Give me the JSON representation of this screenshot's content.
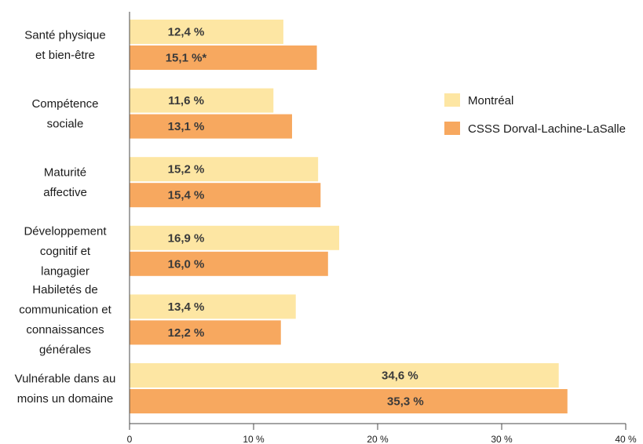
{
  "chart_data": {
    "type": "bar",
    "orientation": "horizontal",
    "categories": [
      [
        "Santé physique",
        "et bien-être"
      ],
      [
        "Compétence",
        "sociale"
      ],
      [
        "Maturité",
        "affective"
      ],
      [
        "Développement",
        "cognitif et",
        "langagier"
      ],
      [
        "Habiletés de",
        "communication et",
        "connaissances",
        "générales"
      ],
      [
        "Vulnérable dans au",
        "moins un domaine"
      ]
    ],
    "series": [
      {
        "name": "Montréal",
        "color": "#fde6a3",
        "values": [
          12.4,
          11.6,
          15.2,
          16.9,
          13.4,
          34.6
        ],
        "labels": [
          "12,4 %",
          "11,6 %",
          "15,2 %",
          "16,9 %",
          "13,4 %",
          "34,6 %"
        ]
      },
      {
        "name": "CSSS Dorval-Lachine-LaSalle",
        "color": "#f7a85f",
        "values": [
          15.1,
          13.1,
          15.4,
          16.0,
          12.2,
          35.3
        ],
        "labels": [
          "15,1 %*",
          "13,1 %",
          "15,4 %",
          "16,0 %",
          "12,2 %",
          "35,3 %"
        ]
      }
    ],
    "xlim": [
      0,
      40
    ],
    "xticks": [
      0,
      10,
      20,
      30,
      40
    ],
    "xtick_labels": [
      "0",
      "10 %",
      "20 %",
      "30 %",
      "40 %"
    ],
    "grid": false,
    "legend_position": "right"
  }
}
